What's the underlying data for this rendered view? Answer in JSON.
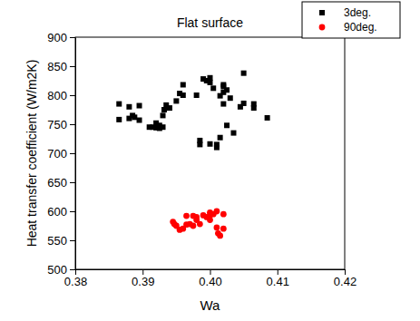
{
  "chart_data": {
    "type": "scatter",
    "title": "Flat surface",
    "x_label": "Wa",
    "y_label": "Heat transfer coefficient (W/m2K)",
    "xlim": [
      0.38,
      0.42
    ],
    "xticks": [
      0.38,
      0.39,
      {
        "value": 0.4,
        "label": "0.40"
      },
      0.41,
      0.42
    ],
    "ylim": [
      500,
      900
    ],
    "yticks": [
      500,
      550,
      600,
      650,
      700,
      750,
      800,
      850,
      900
    ],
    "grid": false,
    "legend": "top-right",
    "series": [
      {
        "name": "3deg.",
        "color": "#000000",
        "marker": "square",
        "x": [
          0.3865,
          0.3865,
          0.388,
          0.388,
          0.3885,
          0.3888,
          0.3895,
          0.3895,
          0.391,
          0.3915,
          0.392,
          0.392,
          0.3925,
          0.3925,
          0.393,
          0.393,
          0.3932,
          0.3935,
          0.394,
          0.395,
          0.3955,
          0.396,
          0.396,
          0.398,
          0.3985,
          0.3985,
          0.399,
          0.3995,
          0.4,
          0.4,
          0.4,
          0.4005,
          0.401,
          0.401,
          0.4015,
          0.402,
          0.402,
          0.402,
          0.402,
          0.4025,
          0.403,
          0.4035,
          0.4045,
          0.405,
          0.405,
          0.4065,
          0.4065,
          0.4085,
          0.4015,
          0.4025
        ],
        "values": [
          785,
          758,
          780,
          760,
          765,
          762,
          782,
          757,
          745,
          745,
          752,
          744,
          748,
          743,
          745,
          765,
          775,
          783,
          778,
          790,
          803,
          818,
          800,
          800,
          715,
          722,
          828,
          825,
          830,
          716,
          822,
          812,
          715,
          710,
          727,
          815,
          818,
          805,
          785,
          748,
          795,
          735,
          780,
          838,
          786,
          778,
          785,
          761,
          799,
          809
        ]
      },
      {
        "name": "90deg.",
        "color": "#ff0000",
        "marker": "circle",
        "x": [
          0.3945,
          0.3947,
          0.395,
          0.3955,
          0.396,
          0.3965,
          0.397,
          0.3975,
          0.398,
          0.398,
          0.3985,
          0.399,
          0.3995,
          0.4,
          0.4,
          0.4,
          0.4005,
          0.401,
          0.401,
          0.4012,
          0.4015,
          0.402,
          0.402,
          0.3975,
          0.3965
        ],
        "values": [
          582,
          578,
          575,
          568,
          570,
          592,
          578,
          575,
          585,
          590,
          578,
          593,
          590,
          598,
          585,
          593,
          595,
          600,
          572,
          562,
          558,
          595,
          570,
          592,
          577
        ]
      }
    ]
  }
}
